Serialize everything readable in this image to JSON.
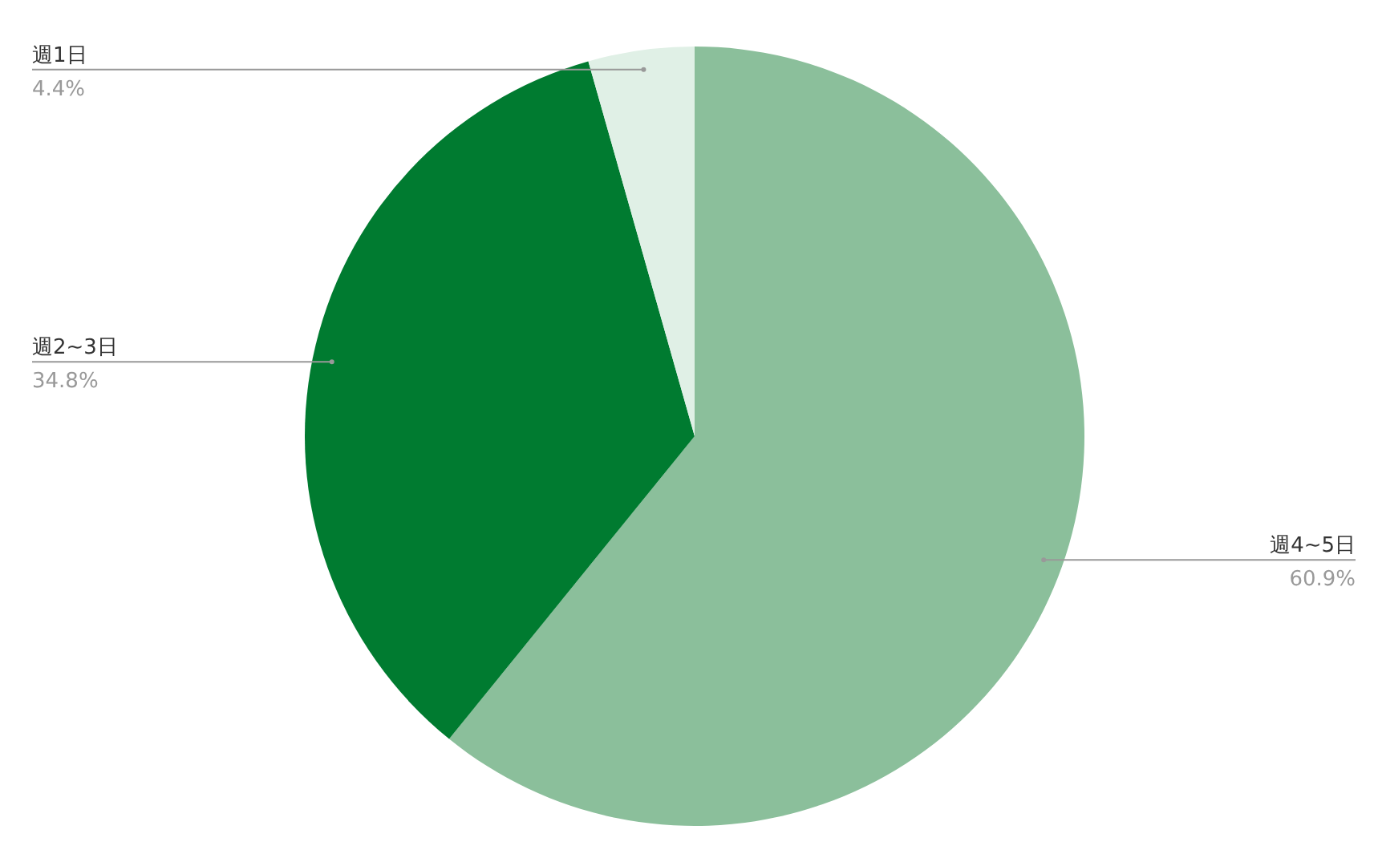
{
  "chart_data": {
    "type": "pie",
    "categories": [
      "週4~5日",
      "週2~3日",
      "週1日"
    ],
    "values": [
      60.9,
      34.8,
      4.4
    ],
    "colors": [
      "#8bbf9b",
      "#007b30",
      "#e0f0e6"
    ],
    "value_labels": [
      "60.9%",
      "34.8%",
      "4.4%"
    ],
    "legend": false
  }
}
